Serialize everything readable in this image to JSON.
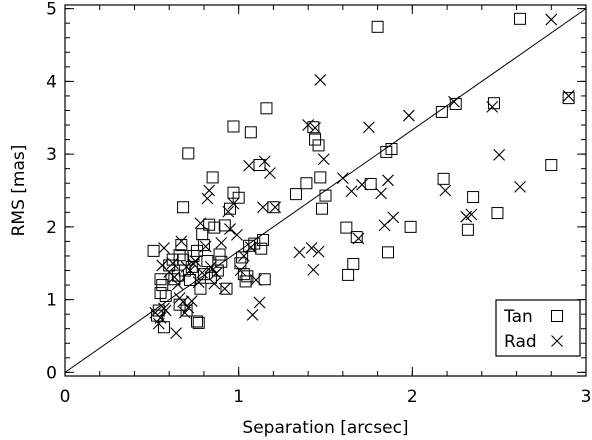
{
  "chart_data": {
    "type": "scatter",
    "title": "",
    "xlabel": "Separation [arcsec]",
    "ylabel": "RMS [mas]",
    "xlim": [
      0,
      3
    ],
    "ylim": [
      -0.05,
      5.05
    ],
    "xticks": [
      0,
      1,
      2,
      3
    ],
    "yticks": [
      0,
      1,
      2,
      3,
      4,
      5
    ],
    "grid": false,
    "legend_position": "bottom-right",
    "reference_line": {
      "x": [
        0,
        3
      ],
      "y": [
        0,
        5
      ]
    },
    "series": [
      {
        "name": "Tan",
        "marker": "square",
        "points": [
          [
            0.51,
            1.67
          ],
          [
            0.53,
            0.78
          ],
          [
            0.54,
            0.85
          ],
          [
            0.55,
            1.28
          ],
          [
            0.55,
            1.09
          ],
          [
            0.56,
            1.2
          ],
          [
            0.57,
            0.62
          ],
          [
            0.58,
            1.05
          ],
          [
            0.6,
            1.47
          ],
          [
            0.62,
            1.55
          ],
          [
            0.63,
            1.28
          ],
          [
            0.65,
            1.33
          ],
          [
            0.66,
            1.61
          ],
          [
            0.66,
            0.93
          ],
          [
            0.67,
            1.75
          ],
          [
            0.68,
            1.55
          ],
          [
            0.68,
            2.27
          ],
          [
            0.69,
            1.4
          ],
          [
            0.7,
            0.85
          ],
          [
            0.71,
            3.01
          ],
          [
            0.72,
            1.27
          ],
          [
            0.73,
            1.45
          ],
          [
            0.74,
            1.6
          ],
          [
            0.76,
            1.67
          ],
          [
            0.76,
            0.7
          ],
          [
            0.77,
            0.68
          ],
          [
            0.78,
            1.15
          ],
          [
            0.79,
            1.9
          ],
          [
            0.8,
            1.75
          ],
          [
            0.8,
            1.35
          ],
          [
            0.82,
            1.53
          ],
          [
            0.83,
            2.03
          ],
          [
            0.84,
            1.3
          ],
          [
            0.85,
            2.68
          ],
          [
            0.86,
            1.99
          ],
          [
            0.88,
            1.4
          ],
          [
            0.89,
            1.62
          ],
          [
            0.9,
            1.52
          ],
          [
            0.92,
            2.02
          ],
          [
            0.93,
            1.15
          ],
          [
            0.95,
            2.25
          ],
          [
            0.97,
            2.47
          ],
          [
            0.97,
            3.38
          ],
          [
            1.0,
            2.4
          ],
          [
            1.01,
            1.5
          ],
          [
            1.02,
            1.58
          ],
          [
            1.03,
            1.35
          ],
          [
            1.04,
            1.25
          ],
          [
            1.05,
            1.32
          ],
          [
            1.06,
            1.74
          ],
          [
            1.07,
            3.3
          ],
          [
            1.09,
            1.77
          ],
          [
            1.12,
            2.85
          ],
          [
            1.13,
            1.7
          ],
          [
            1.14,
            1.82
          ],
          [
            1.15,
            1.28
          ],
          [
            1.16,
            3.63
          ],
          [
            1.2,
            2.27
          ],
          [
            1.33,
            2.45
          ],
          [
            1.39,
            2.6
          ],
          [
            1.43,
            3.37
          ],
          [
            1.44,
            3.2
          ],
          [
            1.46,
            3.12
          ],
          [
            1.47,
            2.68
          ],
          [
            1.48,
            2.25
          ],
          [
            1.5,
            2.43
          ],
          [
            1.62,
            1.99
          ],
          [
            1.63,
            1.34
          ],
          [
            1.66,
            1.49
          ],
          [
            1.68,
            1.86
          ],
          [
            1.76,
            2.59
          ],
          [
            1.8,
            4.75
          ],
          [
            1.85,
            3.03
          ],
          [
            1.88,
            3.07
          ],
          [
            1.86,
            1.65
          ],
          [
            1.99,
            2.0
          ],
          [
            2.17,
            3.58
          ],
          [
            2.18,
            2.66
          ],
          [
            2.25,
            3.69
          ],
          [
            2.32,
            1.96
          ],
          [
            2.35,
            2.41
          ],
          [
            2.47,
            3.7
          ],
          [
            2.49,
            2.19
          ],
          [
            2.62,
            4.86
          ],
          [
            2.8,
            2.85
          ],
          [
            2.9,
            3.77
          ]
        ]
      },
      {
        "name": "Rad",
        "marker": "x",
        "points": [
          [
            0.52,
            0.82
          ],
          [
            0.54,
            0.67
          ],
          [
            0.55,
            0.75
          ],
          [
            0.56,
            1.47
          ],
          [
            0.57,
            0.88
          ],
          [
            0.57,
            1.71
          ],
          [
            0.58,
            0.85
          ],
          [
            0.6,
            1.38
          ],
          [
            0.62,
            1.5
          ],
          [
            0.63,
            1.31
          ],
          [
            0.64,
            0.54
          ],
          [
            0.65,
            1.21
          ],
          [
            0.66,
            1.02
          ],
          [
            0.67,
            1.8
          ],
          [
            0.68,
            0.97
          ],
          [
            0.69,
            0.82
          ],
          [
            0.7,
            1.45
          ],
          [
            0.71,
            0.89
          ],
          [
            0.72,
            1.4
          ],
          [
            0.73,
            0.98
          ],
          [
            0.74,
            1.49
          ],
          [
            0.75,
            1.53
          ],
          [
            0.77,
            1.24
          ],
          [
            0.78,
            2.05
          ],
          [
            0.79,
            1.37
          ],
          [
            0.81,
            1.73
          ],
          [
            0.82,
            2.39
          ],
          [
            0.83,
            2.5
          ],
          [
            0.84,
            1.45
          ],
          [
            0.86,
            1.22
          ],
          [
            0.87,
            1.36
          ],
          [
            0.9,
            1.78
          ],
          [
            0.92,
            1.15
          ],
          [
            0.94,
            2.21
          ],
          [
            0.95,
            1.97
          ],
          [
            0.97,
            2.32
          ],
          [
            0.99,
            1.89
          ],
          [
            1.01,
            1.4
          ],
          [
            1.03,
            1.6
          ],
          [
            1.06,
            2.84
          ],
          [
            1.07,
            1.72
          ],
          [
            1.08,
            0.79
          ],
          [
            1.1,
            1.27
          ],
          [
            1.12,
            0.96
          ],
          [
            1.14,
            2.27
          ],
          [
            1.15,
            2.9
          ],
          [
            1.18,
            2.74
          ],
          [
            1.21,
            2.27
          ],
          [
            1.35,
            1.65
          ],
          [
            1.4,
            3.4
          ],
          [
            1.42,
            1.71
          ],
          [
            1.43,
            1.41
          ],
          [
            1.44,
            3.36
          ],
          [
            1.46,
            1.66
          ],
          [
            1.47,
            4.02
          ],
          [
            1.49,
            2.93
          ],
          [
            1.6,
            2.67
          ],
          [
            1.65,
            2.49
          ],
          [
            1.69,
            1.84
          ],
          [
            1.71,
            2.58
          ],
          [
            1.75,
            3.37
          ],
          [
            1.82,
            2.46
          ],
          [
            1.84,
            2.02
          ],
          [
            1.86,
            2.64
          ],
          [
            1.89,
            2.13
          ],
          [
            1.98,
            3.53
          ],
          [
            2.19,
            2.5
          ],
          [
            2.24,
            3.72
          ],
          [
            2.31,
            2.14
          ],
          [
            2.34,
            2.17
          ],
          [
            2.46,
            3.65
          ],
          [
            2.5,
            2.99
          ],
          [
            2.62,
            2.55
          ],
          [
            2.8,
            4.85
          ],
          [
            2.9,
            3.8
          ]
        ]
      }
    ]
  }
}
